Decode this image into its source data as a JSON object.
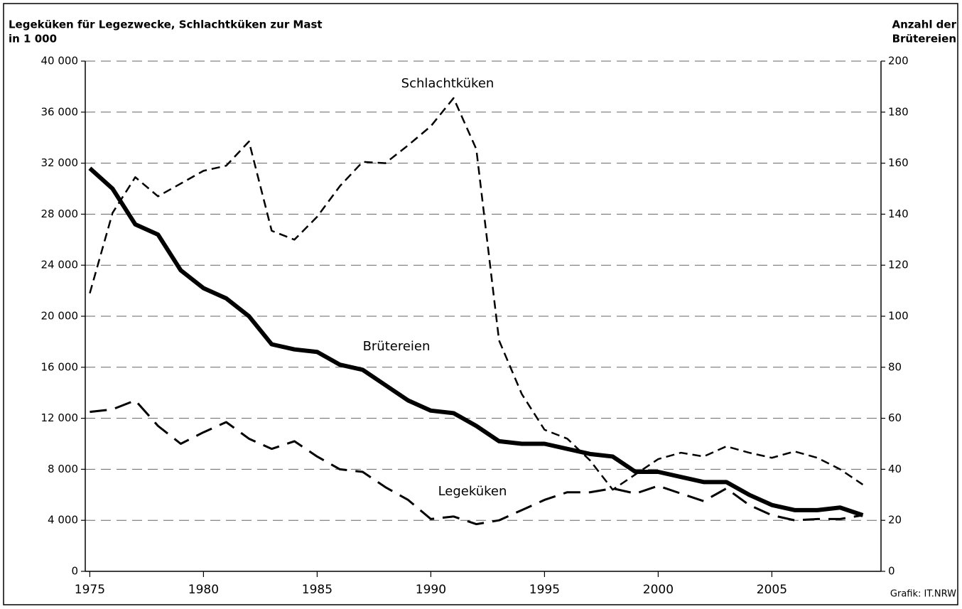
{
  "chart_data": {
    "type": "line",
    "y_label": [
      "Legeküken für Legezwecke, Schlachtküken zur Mast",
      "in 1 000"
    ],
    "y2_label": [
      "Anzahl der",
      "Brütereien"
    ],
    "source": "Grafik: IT.NRW",
    "x": [
      1975,
      1976,
      1977,
      1978,
      1979,
      1980,
      1981,
      1982,
      1983,
      1984,
      1985,
      1986,
      1987,
      1988,
      1989,
      1990,
      1991,
      1992,
      1993,
      1994,
      1995,
      1996,
      1997,
      1998,
      1999,
      2000,
      2001,
      2002,
      2003,
      2004,
      2005,
      2006,
      2007,
      2008,
      2009
    ],
    "xlim": [
      1974.8,
      2009.8
    ],
    "xticks": [
      1975,
      1980,
      1985,
      1990,
      1995,
      2000,
      2005
    ],
    "ylim": [
      0,
      40000
    ],
    "yticks": [
      0,
      {
        "value": 4000,
        "label": "4 000"
      },
      {
        "value": 8000,
        "label": "8 000"
      },
      {
        "value": 12000,
        "label": "12 000"
      },
      {
        "value": 16000,
        "label": "16 000"
      },
      {
        "value": 20000,
        "label": "20 000"
      },
      {
        "value": 24000,
        "label": "24 000"
      },
      {
        "value": 28000,
        "label": "28 000"
      },
      {
        "value": 32000,
        "label": "32 000"
      },
      {
        "value": 36000,
        "label": "36 000"
      },
      {
        "value": 40000,
        "label": "40 000"
      }
    ],
    "y2lim": [
      0,
      200
    ],
    "y2ticks": [
      0,
      20,
      40,
      60,
      80,
      100,
      120,
      140,
      160,
      180,
      200
    ],
    "grid": true,
    "series": [
      {
        "name": "Schlachtküken",
        "color": "#000000",
        "values": [
          21800,
          28100,
          30900,
          29400,
          30400,
          31400,
          31800,
          33700,
          26700,
          26000,
          27800,
          30200,
          32100,
          32000,
          33400,
          34900,
          37100,
          33100,
          18100,
          13900,
          11100,
          10400,
          8700,
          6400,
          7600,
          8800,
          9300,
          9000,
          9800,
          9300,
          8900,
          9400,
          8900,
          8000,
          6800
        ]
      },
      {
        "name": "Brütereien",
        "color": "#000000",
        "axis": "y2",
        "values": [
          158,
          150,
          136,
          132,
          118,
          111,
          107,
          100,
          89,
          87,
          86,
          81,
          79,
          73,
          67,
          63,
          62,
          57,
          51,
          50,
          50,
          48,
          46,
          45,
          39,
          39,
          37,
          35,
          35,
          30,
          26,
          24,
          24,
          25,
          22
        ]
      },
      {
        "name": "Legeküken",
        "color": "#000000",
        "values": [
          12500,
          12700,
          13400,
          11400,
          10000,
          10900,
          11700,
          10400,
          9600,
          10200,
          9000,
          8000,
          7800,
          6600,
          5600,
          4100,
          4300,
          3700,
          4000,
          4800,
          5600,
          6200,
          6200,
          6500,
          6100,
          6700,
          6100,
          5500,
          6500,
          5200,
          4400,
          4000,
          4100,
          4100,
          4400
        ]
      }
    ]
  }
}
